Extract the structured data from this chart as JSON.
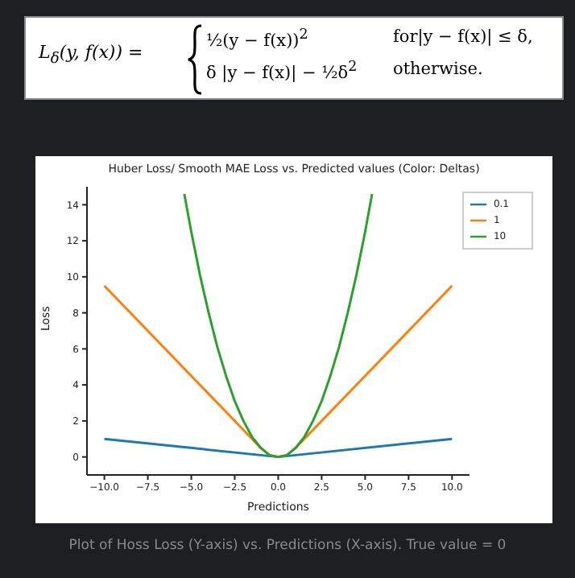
{
  "chart_data": {
    "type": "line",
    "title": "Huber Loss/ Smooth MAE Loss vs. Predicted values (Color: Deltas)",
    "xlabel": "Predictions",
    "ylabel": "Loss",
    "series": [
      {
        "name": "0.1",
        "color": "#1f77b4",
        "x": [
          -10,
          0,
          10
        ],
        "values": [
          1,
          0,
          1
        ]
      },
      {
        "name": "1",
        "color": "#ff7f0e",
        "x": [
          -10,
          -5,
          -1,
          -0.5,
          0,
          0.5,
          1,
          5,
          10
        ],
        "values": [
          9.5,
          4.5,
          0.5,
          0.1,
          0,
          0.1,
          0.5,
          4.5,
          9.5
        ]
      },
      {
        "name": "10",
        "color": "#2ca02c",
        "x": [
          -5.4,
          -5,
          -4.5,
          -4,
          -3.5,
          -3,
          -2.5,
          -2,
          -1.5,
          -1,
          -0.5,
          0,
          0.5,
          1,
          1.5,
          2,
          2.5,
          3,
          3.5,
          4,
          4.5,
          5,
          5.4
        ],
        "values": [
          14.6,
          12.5,
          10.1,
          8,
          6.1,
          4.5,
          3.1,
          2,
          1.1,
          0.5,
          0.1,
          0,
          0.1,
          0.5,
          1.1,
          2,
          3.1,
          4.5,
          6.1,
          8,
          10.1,
          12.5,
          14.6
        ]
      }
    ],
    "xlim": [
      -11,
      11
    ],
    "ylim": [
      -1,
      15
    ],
    "xticks": [
      {
        "value": -10,
        "label": "−10.0"
      },
      {
        "value": -7.5,
        "label": "−7.5"
      },
      {
        "value": -5,
        "label": "−5.0"
      },
      {
        "value": -2.5,
        "label": "−2.5"
      },
      {
        "value": 0,
        "label": "0.0"
      },
      {
        "value": 2.5,
        "label": "2.5"
      },
      {
        "value": 5,
        "label": "5.0"
      },
      {
        "value": 7.5,
        "label": "7.5"
      },
      {
        "value": 10,
        "label": "10.0"
      }
    ],
    "yticks": [
      0,
      2,
      4,
      6,
      8,
      10,
      12,
      14
    ],
    "legend": "top right",
    "marker": "none",
    "line_style": "solid",
    "annotations": [
      "L$_{δ}$(y, f(x)) =",
      "½(y − f(x))$^{2}$",
      "for|y − f(x)| ≤ δ,",
      "δ |y − f(x)| − ½δ$^{2}$",
      "otherwise.",
      "Plot of Hoss Loss (Y-axis) vs. Predictions (X-axis). True value = 0"
    ]
  }
}
